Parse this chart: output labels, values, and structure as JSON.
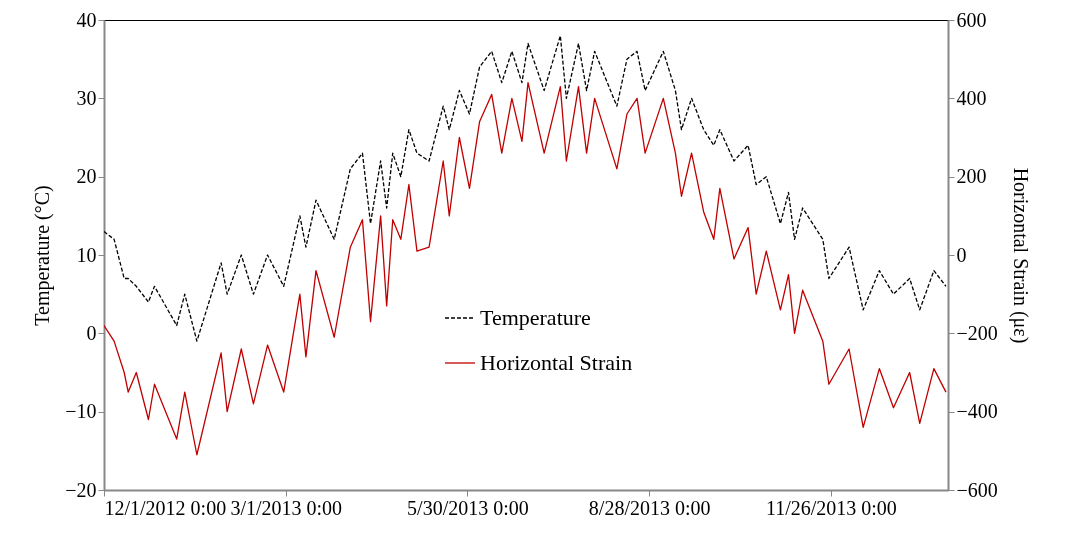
{
  "chart_data": {
    "type": "line",
    "ylabel": "Temperature (°C)",
    "y2label": "Horizontal Strain (με)",
    "x": [
      "2012-12-01",
      "2012-12-06",
      "2012-12-11",
      "2012-12-13",
      "2012-12-17",
      "2012-12-23",
      "2012-12-26",
      "2013-01-06",
      "2013-01-10",
      "2013-01-16",
      "2013-01-28",
      "2013-01-31",
      "2013-02-07",
      "2013-02-13",
      "2013-02-20",
      "2013-02-28",
      "2013-03-08",
      "2013-03-11",
      "2013-03-16",
      "2013-03-25",
      "2013-04-02",
      "2013-04-08",
      "2013-04-12",
      "2013-04-17",
      "2013-04-20",
      "2013-04-23",
      "2013-04-27",
      "2013-05-01",
      "2013-05-05",
      "2013-05-11",
      "2013-05-18",
      "2013-05-21",
      "2013-05-26",
      "2013-05-31",
      "2013-06-05",
      "2013-06-11",
      "2013-06-16",
      "2013-06-21",
      "2013-06-26",
      "2013-06-29",
      "2013-07-07",
      "2013-07-15",
      "2013-07-18",
      "2013-07-24",
      "2013-07-28",
      "2013-08-01",
      "2013-08-12",
      "2013-08-17",
      "2013-08-22",
      "2013-08-26",
      "2013-09-04",
      "2013-09-10",
      "2013-09-13",
      "2013-09-18",
      "2013-09-24",
      "2013-09-29",
      "2013-10-02",
      "2013-10-09",
      "2013-10-16",
      "2013-10-20",
      "2013-10-25",
      "2013-11-01",
      "2013-11-05",
      "2013-11-08",
      "2013-11-12",
      "2013-11-22",
      "2013-11-25",
      "2013-12-05",
      "2013-12-12",
      "2013-12-20",
      "2013-12-27",
      "2014-01-04",
      "2014-01-09",
      "2014-01-16",
      "2014-01-22"
    ],
    "series": [
      {
        "name": "Temperature",
        "color": "#000000",
        "line_style": "dashed",
        "values": [
          13,
          12,
          7,
          7,
          6,
          4,
          6,
          1,
          5,
          -1,
          9,
          5,
          10,
          5,
          10,
          6,
          15,
          11,
          17,
          12,
          21,
          23,
          14,
          22,
          16,
          23,
          20,
          26,
          23,
          22,
          29,
          26,
          31,
          28,
          34,
          36,
          32,
          36,
          32,
          37,
          31,
          38,
          30,
          37,
          31,
          36,
          29,
          35,
          36,
          31,
          36,
          31,
          26,
          30,
          26,
          24,
          26,
          22,
          24,
          19,
          20,
          14,
          18,
          12,
          16,
          12,
          7,
          11,
          3,
          8,
          5,
          7,
          3,
          8,
          6
        ]
      },
      {
        "name": "Horizontal Strain",
        "color": "#c00000",
        "line_style": "solid",
        "axis": "y2",
        "values": [
          -180,
          -220,
          -300,
          -350,
          -300,
          -420,
          -330,
          -470,
          -350,
          -510,
          -250,
          -400,
          -240,
          -380,
          -230,
          -350,
          -100,
          -260,
          -40,
          -210,
          20,
          90,
          -170,
          100,
          -130,
          90,
          40,
          180,
          10,
          20,
          240,
          100,
          300,
          170,
          340,
          410,
          260,
          400,
          290,
          440,
          260,
          430,
          240,
          430,
          260,
          400,
          220,
          360,
          400,
          260,
          400,
          260,
          150,
          260,
          110,
          40,
          170,
          -10,
          70,
          -100,
          10,
          -140,
          -50,
          -200,
          -90,
          -220,
          -330,
          -240,
          -440,
          -290,
          -390,
          -300,
          -430,
          -290,
          -350
        ]
      }
    ],
    "xlim": [
      "2012-12-01",
      "2014-01-23"
    ],
    "xticks": [
      {
        "value": "2012-12-01",
        "label": "12/1/2012 0:00"
      },
      {
        "value": "2013-03-01",
        "label": "3/1/2013 0:00"
      },
      {
        "value": "2013-05-30",
        "label": "5/30/2013 0:00"
      },
      {
        "value": "2013-08-28",
        "label": "8/28/2013 0:00"
      },
      {
        "value": "2013-11-26",
        "label": "11/26/2013 0:00"
      }
    ],
    "ylim": [
      -20,
      40
    ],
    "yticks": [
      -20,
      -10,
      0,
      10,
      20,
      30,
      40
    ],
    "y2lim": [
      -600,
      600
    ],
    "y2ticks": [
      -600,
      -400,
      -200,
      0,
      200,
      400,
      600
    ],
    "grid": false,
    "legend": "center"
  }
}
